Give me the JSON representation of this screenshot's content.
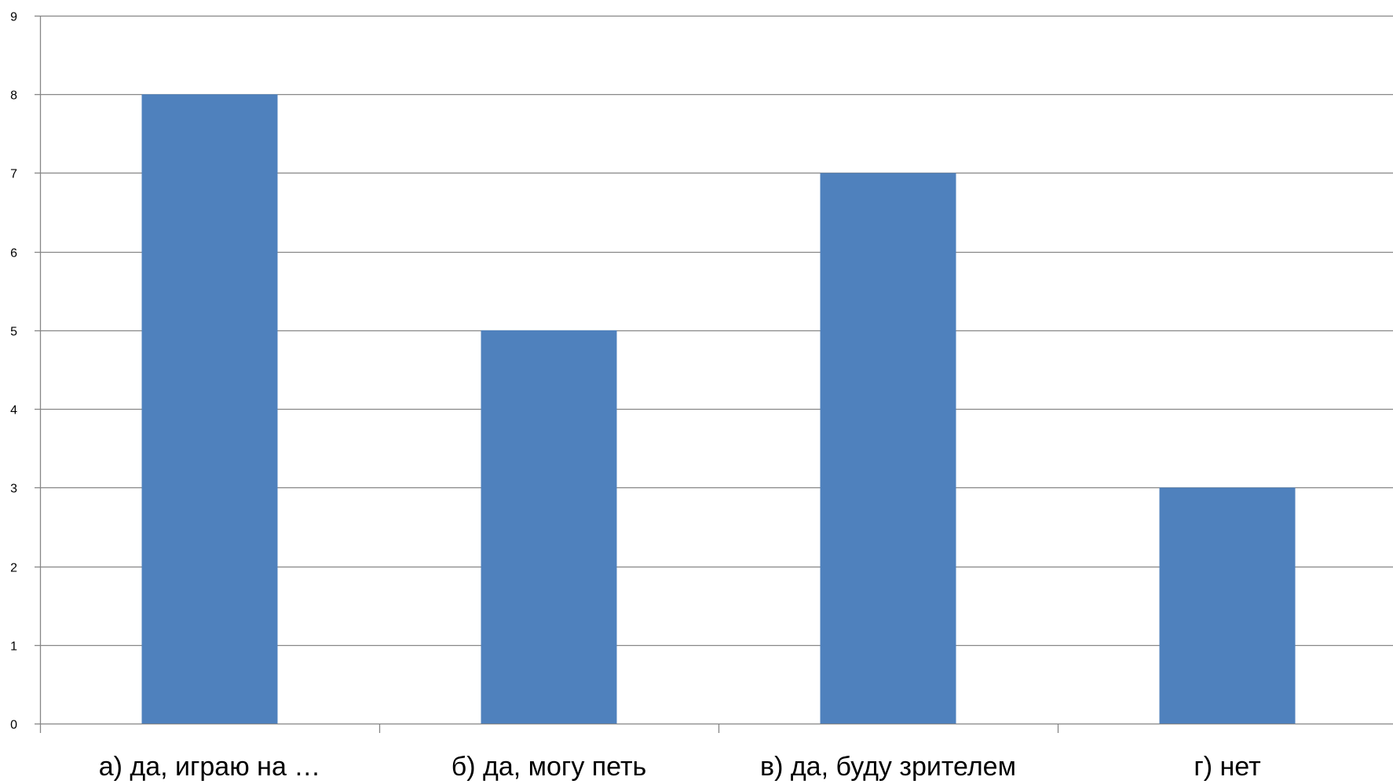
{
  "chart_data": {
    "type": "bar",
    "categories": [
      "а) да, играю на …",
      "б) да, могу петь",
      "в) да, буду зрителем",
      "г) нет"
    ],
    "values": [
      8,
      5,
      7,
      3
    ],
    "ylim": [
      0,
      9
    ],
    "yticks": [
      0,
      1,
      2,
      3,
      4,
      5,
      6,
      7,
      8,
      9
    ],
    "grid": true,
    "legend": "none",
    "colors": {
      "bar": "#4F81BD",
      "grid": "#868686",
      "axis": "#868686"
    }
  }
}
